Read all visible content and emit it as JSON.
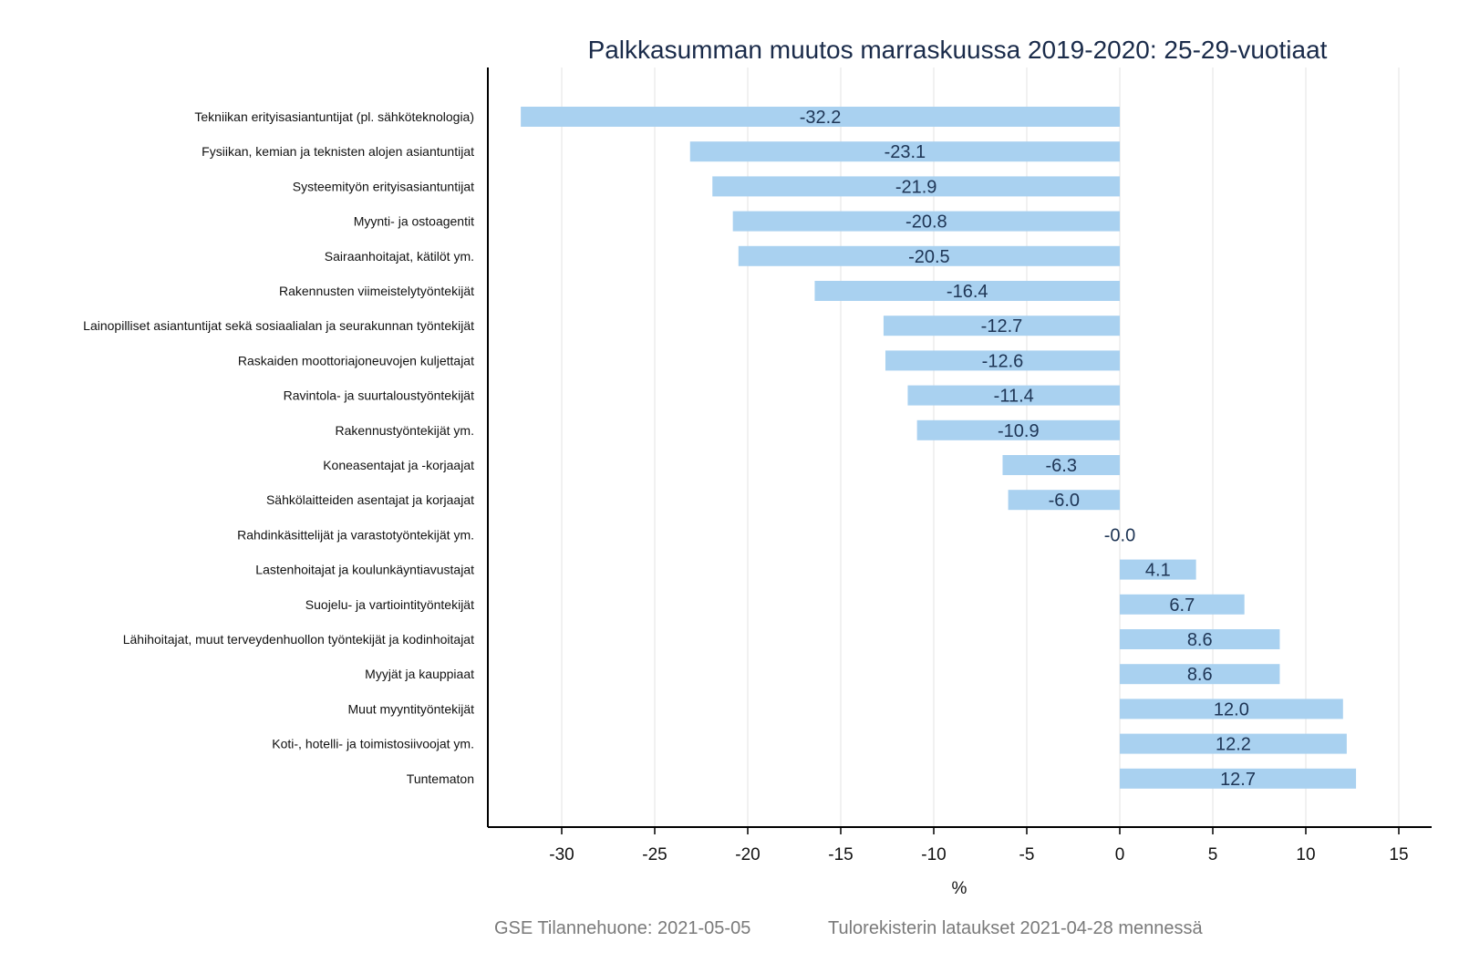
{
  "chart_data": {
    "type": "bar",
    "orientation": "horizontal",
    "title": "Palkkasumman muutos marraskuussa 2019-2020: 25-29-vuotiaat",
    "xlabel": "%",
    "ylabel": "",
    "xlim": [
      -36,
      17
    ],
    "xticks": [
      -30,
      -25,
      -20,
      -15,
      -10,
      -5,
      0,
      5,
      10,
      15
    ],
    "xtick_labels": [
      "-30",
      "-25",
      "-20",
      "-15",
      "-10",
      "-5",
      "0",
      "5",
      "10",
      "15"
    ],
    "grid": "vertical",
    "bar_color": "#a9d1f0",
    "label_color": "#1e3555",
    "categories": [
      "Tekniikan erityisasiantuntijat (pl. sähköteknologia)",
      "Fysiikan, kemian ja teknisten alojen asiantuntijat",
      "Systeemityön erityisasiantuntijat",
      "Myynti- ja ostoagentit",
      "Sairaanhoitajat, kätilöt ym.",
      "Rakennusten viimeistelytyöntekijät",
      "Lainopilliset asiantuntijat sekä sosiaalialan ja seurakunnan työntekijät",
      "Raskaiden moottoriajoneuvojen kuljettajat",
      "Ravintola- ja suurtaloustyöntekijät",
      "Rakennustyöntekijät ym.",
      "Koneasentajat ja -korjaajat",
      "Sähkölaitteiden asentajat ja korjaajat",
      "Rahdinkäsittelijät ja varastotyöntekijät ym.",
      "Lastenhoitajat ja koulunkäyntiavustajat",
      "Suojelu- ja vartiointityöntekijät",
      "Lähihoitajat, muut terveydenhuollon työntekijät ja kodinhoitajat",
      "Myyjät ja kauppiaat",
      "Muut myyntityöntekijät",
      "Koti-, hotelli- ja toimistosiivoojat ym.",
      "Tuntematon"
    ],
    "values": [
      -32.2,
      -23.1,
      -21.9,
      -20.8,
      -20.5,
      -16.4,
      -12.7,
      -12.6,
      -11.4,
      -10.9,
      -6.3,
      -6.0,
      -0.0,
      4.1,
      6.7,
      8.6,
      8.6,
      12.0,
      12.2,
      12.7
    ],
    "value_labels": [
      "-32.2",
      "-23.1",
      "-21.9",
      "-20.8",
      "-20.5",
      "-16.4",
      "-12.7",
      "-12.6",
      "-11.4",
      "-10.9",
      "-6.3",
      "-6.0",
      "-0.0",
      "4.1",
      "6.7",
      "8.6",
      "8.6",
      "12.0",
      "12.2",
      "12.7"
    ]
  },
  "footer": {
    "left": "GSE Tilannehuone: 2021-05-05",
    "right": "Tulorekisterin lataukset 2021-04-28 mennessä"
  }
}
